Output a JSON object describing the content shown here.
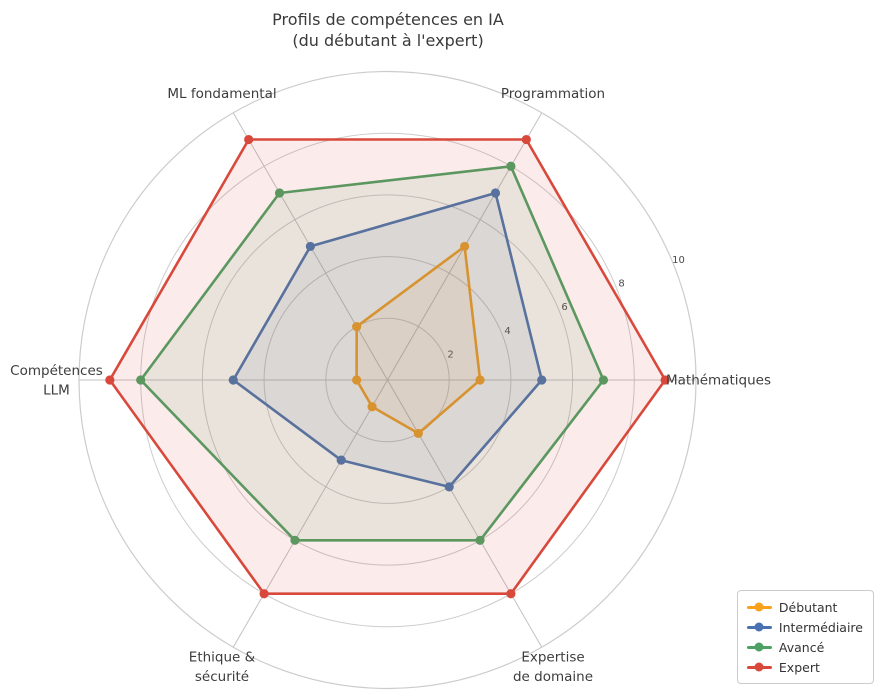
{
  "title": {
    "line1": "Profils de compétences en IA",
    "line2": "(du débutant à l'expert)"
  },
  "chart_data": {
    "type": "radar",
    "categories": [
      "Mathématiques",
      "Programmation",
      "ML fondamental",
      "Compétences\nLLM",
      "Ethique &\nsécurité",
      "Expertise\nde domaine"
    ],
    "series": [
      {
        "name": "Débutant",
        "color": "#F9A11B",
        "values": [
          3,
          5,
          2,
          1,
          1,
          2
        ]
      },
      {
        "name": "Intermédiaire",
        "color": "#4A72B2",
        "values": [
          5,
          7,
          5,
          5,
          3,
          4
        ]
      },
      {
        "name": "Avancé",
        "color": "#4EA164",
        "values": [
          7,
          8,
          7,
          8,
          6,
          6
        ]
      },
      {
        "name": "Expert",
        "color": "#D8493C",
        "values": [
          9,
          9,
          9,
          9,
          8,
          8
        ]
      }
    ],
    "r_ticks": [
      2,
      4,
      6,
      8,
      10
    ],
    "r_tick_labels": [
      "2",
      "4",
      "6",
      "8",
      "10"
    ],
    "r_max": 10,
    "r_label_angle_deg": 22.5,
    "start_angle_deg": 0,
    "direction": "counterclockwise",
    "grid": true,
    "grid_circle_color": "#cccccc",
    "spoke_color": "#c2c2c2",
    "fill_opacity": 0.1,
    "category_label_color": "#3d3d3d",
    "tick_label_color": "#4a4a4a",
    "legend_position": "lower right"
  }
}
